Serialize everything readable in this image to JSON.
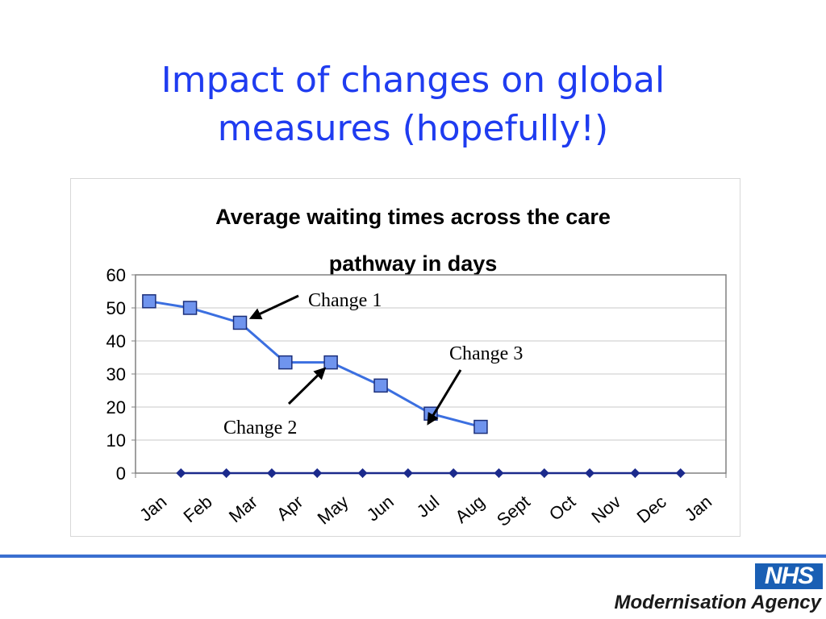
{
  "slide": {
    "title_line1": "Impact of changes on global",
    "title_line2": "measures (hopefully!)"
  },
  "chart_data": {
    "type": "line",
    "title_line1": "Average waiting times across the care",
    "title_line2": "pathway in days",
    "categories": [
      "Jan",
      "Feb",
      "Mar",
      "Apr",
      "May",
      "Jun",
      "Jul",
      "Aug",
      "Sept",
      "Oct",
      "Nov",
      "Dec",
      "Jan"
    ],
    "ylim": [
      0,
      60
    ],
    "yticks": [
      0,
      10,
      20,
      30,
      40,
      50,
      60
    ],
    "grid": true,
    "series": [
      {
        "color": "#3b6fe0",
        "marker": "square",
        "points": [
          [
            0.3,
            52
          ],
          [
            1.2,
            50
          ],
          [
            2.3,
            45.5
          ],
          [
            3.3,
            33.5
          ],
          [
            4.3,
            33.5
          ],
          [
            5.4,
            26.5
          ],
          [
            6.5,
            18
          ],
          [
            7.6,
            14
          ]
        ]
      },
      {
        "color": "#1b2a8c",
        "marker": "diamond",
        "points": [
          [
            1,
            0
          ],
          [
            2,
            0
          ],
          [
            3,
            0
          ],
          [
            4,
            0
          ],
          [
            5,
            0
          ],
          [
            6,
            0
          ],
          [
            7,
            0
          ],
          [
            8,
            0
          ],
          [
            9,
            0
          ],
          [
            10,
            0
          ],
          [
            11,
            0
          ],
          [
            12,
            0
          ]
        ]
      }
    ],
    "annotations": [
      {
        "label": "Change 1",
        "arrow_to": [
          2.3,
          45.5
        ]
      },
      {
        "label": "Change 2",
        "arrow_to": [
          4.3,
          33.5
        ]
      },
      {
        "label": "Change 3",
        "arrow_to": [
          6.5,
          18
        ]
      }
    ]
  },
  "footer": {
    "logo_text": "NHS",
    "agency": "Modernisation Agency"
  }
}
